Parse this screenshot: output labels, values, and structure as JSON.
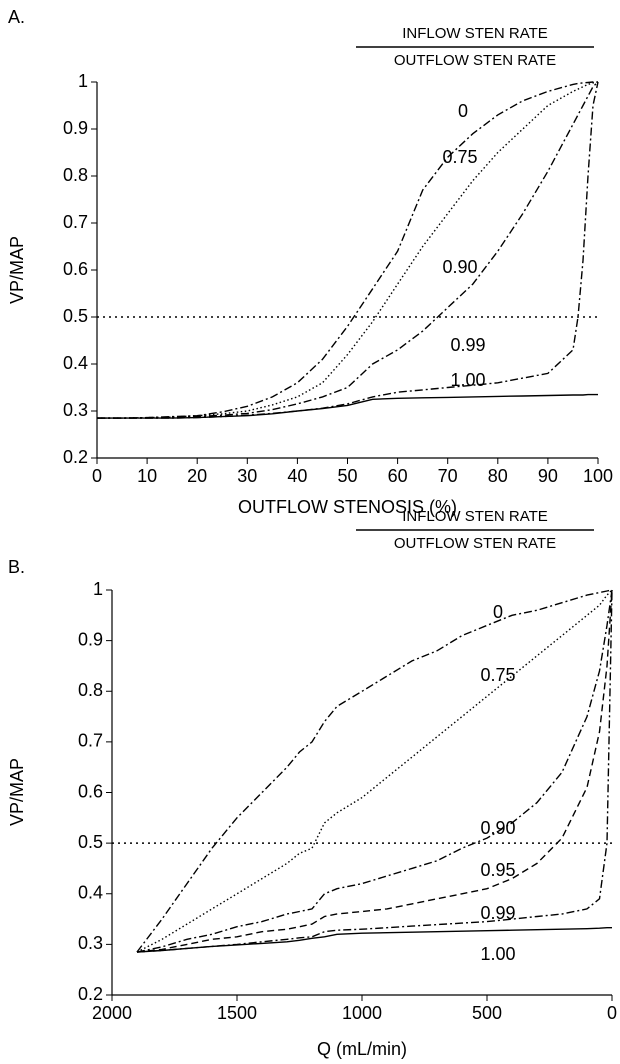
{
  "chart_data": [
    {
      "type": "line",
      "panel_label": "A.",
      "legend_title": {
        "numerator": "INFLOW STEN RATE",
        "denominator": "OUTFLOW STEN RATE"
      },
      "x_label": "OUTFLOW STENOSIS (%)",
      "y_label": "VP/MAP",
      "xlim": [
        0,
        100
      ],
      "ylim": [
        0.2,
        1
      ],
      "xticks": [
        0,
        10,
        20,
        30,
        40,
        50,
        60,
        70,
        80,
        90,
        100
      ],
      "yticks": [
        0.2,
        0.3,
        0.4,
        0.5,
        0.6,
        0.7,
        0.8,
        0.9,
        1
      ],
      "hline": 0.5,
      "x": [
        0,
        5,
        10,
        15,
        20,
        25,
        30,
        35,
        40,
        45,
        50,
        55,
        60,
        65,
        70,
        75,
        80,
        85,
        90,
        95,
        96,
        97,
        98,
        99,
        100
      ],
      "series": [
        {
          "name": "0",
          "color": "#000000",
          "linestyle": "dashdot",
          "values": [
            0.285,
            0.285,
            0.286,
            0.288,
            0.29,
            0.298,
            0.31,
            0.33,
            0.36,
            0.41,
            0.48,
            0.56,
            0.64,
            0.77,
            0.84,
            0.89,
            0.93,
            0.96,
            0.98,
            0.995,
            0.997,
            0.998,
            0.999,
            1,
            1
          ]
        },
        {
          "name": "0.75",
          "color": "#000000",
          "linestyle": "dotted",
          "values": [
            0.285,
            0.285,
            0.286,
            0.287,
            0.29,
            0.294,
            0.3,
            0.313,
            0.33,
            0.36,
            0.42,
            0.49,
            0.57,
            0.65,
            0.72,
            0.79,
            0.85,
            0.9,
            0.95,
            0.98,
            0.985,
            0.99,
            0.995,
            0.998,
            1
          ]
        },
        {
          "name": "0.90",
          "color": "#000000",
          "linestyle": "dashdot",
          "values": [
            0.285,
            0.285,
            0.285,
            0.286,
            0.288,
            0.291,
            0.295,
            0.303,
            0.315,
            0.33,
            0.35,
            0.4,
            0.43,
            0.47,
            0.52,
            0.57,
            0.64,
            0.72,
            0.81,
            0.91,
            0.93,
            0.95,
            0.97,
            0.99,
            1
          ]
        },
        {
          "name": "0.99",
          "color": "#000000",
          "linestyle": "dashdot",
          "values": [
            0.285,
            0.285,
            0.285,
            0.285,
            0.286,
            0.288,
            0.291,
            0.295,
            0.3,
            0.306,
            0.315,
            0.33,
            0.34,
            0.345,
            0.35,
            0.355,
            0.36,
            0.37,
            0.38,
            0.43,
            0.5,
            0.62,
            0.8,
            0.95,
            1
          ]
        },
        {
          "name": "1.00",
          "color": "#000000",
          "linestyle": "solid",
          "values": [
            0.285,
            0.285,
            0.285,
            0.285,
            0.286,
            0.288,
            0.29,
            0.294,
            0.3,
            0.305,
            0.312,
            0.325,
            0.327,
            0.328,
            0.329,
            0.33,
            0.331,
            0.332,
            0.333,
            0.334,
            0.334,
            0.334,
            0.335,
            0.335,
            0.335
          ]
        }
      ]
    },
    {
      "type": "line",
      "panel_label": "B.",
      "legend_title": {
        "numerator": "INFLOW STEN RATE",
        "denominator": "OUTFLOW STEN RATE"
      },
      "x_label": "Q (mL/min)",
      "y_label": "VP/MAP",
      "xlim": [
        2000,
        0
      ],
      "ylim": [
        0.2,
        1
      ],
      "xticks": [
        2000,
        1500,
        1000,
        500,
        0
      ],
      "yticks": [
        0.2,
        0.3,
        0.4,
        0.5,
        0.6,
        0.7,
        0.8,
        0.9,
        1
      ],
      "hline": 0.5,
      "x": [
        1900,
        1800,
        1700,
        1600,
        1500,
        1400,
        1300,
        1250,
        1200,
        1150,
        1100,
        1000,
        900,
        800,
        700,
        600,
        500,
        400,
        300,
        200,
        100,
        50,
        20,
        0
      ],
      "series": [
        {
          "name": "0",
          "color": "#000000",
          "linestyle": "dashdot",
          "values": [
            0.285,
            0.35,
            0.42,
            0.49,
            0.55,
            0.6,
            0.65,
            0.68,
            0.7,
            0.74,
            0.77,
            0.8,
            0.83,
            0.86,
            0.88,
            0.91,
            0.93,
            0.95,
            0.96,
            0.975,
            0.99,
            0.995,
            0.998,
            1
          ]
        },
        {
          "name": "0.75",
          "color": "#000000",
          "linestyle": "dotted",
          "values": [
            0.285,
            0.31,
            0.34,
            0.37,
            0.4,
            0.43,
            0.46,
            0.48,
            0.49,
            0.54,
            0.56,
            0.59,
            0.63,
            0.67,
            0.71,
            0.75,
            0.79,
            0.83,
            0.87,
            0.91,
            0.95,
            0.97,
            0.99,
            1
          ]
        },
        {
          "name": "0.90",
          "color": "#000000",
          "linestyle": "dashdot",
          "values": [
            0.285,
            0.295,
            0.31,
            0.32,
            0.335,
            0.345,
            0.36,
            0.365,
            0.37,
            0.4,
            0.41,
            0.42,
            0.435,
            0.45,
            0.465,
            0.49,
            0.51,
            0.54,
            0.58,
            0.64,
            0.75,
            0.84,
            0.93,
            1
          ]
        },
        {
          "name": "0.95",
          "color": "#000000",
          "linestyle": "dashed",
          "values": [
            0.285,
            0.29,
            0.3,
            0.31,
            0.315,
            0.325,
            0.33,
            0.335,
            0.34,
            0.355,
            0.36,
            0.365,
            0.37,
            0.38,
            0.39,
            0.4,
            0.41,
            0.43,
            0.46,
            0.51,
            0.61,
            0.72,
            0.85,
            1
          ]
        },
        {
          "name": "0.99",
          "color": "#000000",
          "linestyle": "dashdot",
          "values": [
            0.285,
            0.288,
            0.292,
            0.296,
            0.3,
            0.305,
            0.31,
            0.313,
            0.315,
            0.325,
            0.328,
            0.33,
            0.333,
            0.336,
            0.339,
            0.342,
            0.345,
            0.35,
            0.355,
            0.36,
            0.37,
            0.39,
            0.5,
            1
          ]
        },
        {
          "name": "1.00",
          "color": "#000000",
          "linestyle": "solid",
          "values": [
            0.285,
            0.288,
            0.292,
            0.296,
            0.299,
            0.302,
            0.305,
            0.308,
            0.312,
            0.315,
            0.32,
            0.322,
            0.323,
            0.324,
            0.325,
            0.326,
            0.327,
            0.328,
            0.329,
            0.33,
            0.331,
            0.332,
            0.333,
            0.333
          ]
        }
      ]
    }
  ]
}
